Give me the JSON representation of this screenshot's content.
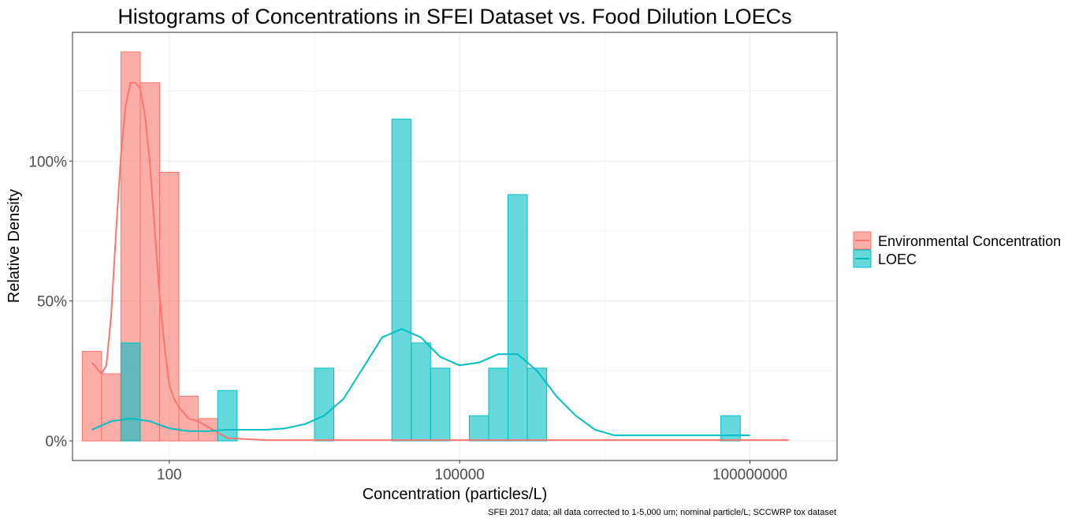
{
  "chart_data": {
    "type": "bar",
    "title": "Histograms of Concentrations in SFEI Dataset vs. Food Dilution LOECs",
    "xlabel": "Concentration (particles/L)",
    "ylabel": "Relative Density",
    "caption": "SFEI 2017 data; all data corrected to 1-5,000 um; nominal particle/L; SCCWRP tox dataset",
    "x_scale": "log10",
    "xlim": [
      1.0,
      8.9
    ],
    "ylim": [
      -0.07,
      1.46
    ],
    "x_ticks": [
      {
        "value": 2,
        "label": "100"
      },
      {
        "value": 5,
        "label": "100000"
      },
      {
        "value": 8,
        "label": "100000000"
      }
    ],
    "y_ticks": [
      {
        "value": 0,
        "label": "0%"
      },
      {
        "value": 0.5,
        "label": "50%"
      },
      {
        "value": 1.0,
        "label": "100%"
      }
    ],
    "grid": true,
    "legend_position": "right",
    "bin_width": 0.2,
    "series": [
      {
        "name": "Environmental Concentration",
        "fill": "#F8766D",
        "bin_starts": [
          1.1,
          1.3,
          1.5,
          1.7,
          1.9,
          2.1,
          2.3
        ],
        "values": [
          0.32,
          0.24,
          1.39,
          1.28,
          0.96,
          0.16,
          0.08
        ],
        "density_curve": {
          "x": [
            1.2,
            1.25,
            1.3,
            1.35,
            1.4,
            1.45,
            1.5,
            1.55,
            1.6,
            1.65,
            1.7,
            1.75,
            1.8,
            1.85,
            1.9,
            1.95,
            2.0,
            2.05,
            2.1,
            2.15,
            2.2,
            2.3,
            2.4,
            2.5,
            2.6,
            3.0,
            4.0,
            5.0,
            6.0,
            7.0,
            8.0,
            8.4
          ],
          "y": [
            0.28,
            0.26,
            0.24,
            0.27,
            0.45,
            0.75,
            1.02,
            1.2,
            1.28,
            1.28,
            1.26,
            1.16,
            0.99,
            0.75,
            0.52,
            0.34,
            0.2,
            0.15,
            0.12,
            0.1,
            0.08,
            0.07,
            0.05,
            0.03,
            0.01,
            0.003,
            0.003,
            0.003,
            0.003,
            0.003,
            0.003,
            0.003
          ]
        }
      },
      {
        "name": "LOEC",
        "fill": "#00BFC4",
        "bin_starts": [
          1.5,
          2.5,
          3.5,
          4.3,
          4.5,
          4.7,
          5.1,
          5.3,
          5.5,
          5.7,
          7.7
        ],
        "values": [
          0.35,
          0.18,
          0.26,
          1.15,
          0.35,
          0.26,
          0.09,
          0.26,
          0.88,
          0.26,
          0.09
        ],
        "density_curve": {
          "x": [
            1.2,
            1.4,
            1.6,
            1.8,
            2.0,
            2.2,
            2.4,
            2.6,
            2.8,
            3.0,
            3.2,
            3.4,
            3.6,
            3.8,
            4.0,
            4.2,
            4.4,
            4.6,
            4.8,
            5.0,
            5.2,
            5.4,
            5.6,
            5.8,
            6.0,
            6.2,
            6.4,
            6.6,
            6.8,
            7.0,
            7.2,
            7.4,
            7.6,
            7.8,
            8.0
          ],
          "y": [
            0.04,
            0.07,
            0.08,
            0.07,
            0.045,
            0.035,
            0.035,
            0.04,
            0.04,
            0.04,
            0.045,
            0.06,
            0.09,
            0.15,
            0.26,
            0.37,
            0.4,
            0.37,
            0.3,
            0.27,
            0.28,
            0.31,
            0.31,
            0.25,
            0.16,
            0.09,
            0.04,
            0.02,
            0.02,
            0.02,
            0.02,
            0.02,
            0.02,
            0.02,
            0.02
          ]
        }
      }
    ]
  }
}
